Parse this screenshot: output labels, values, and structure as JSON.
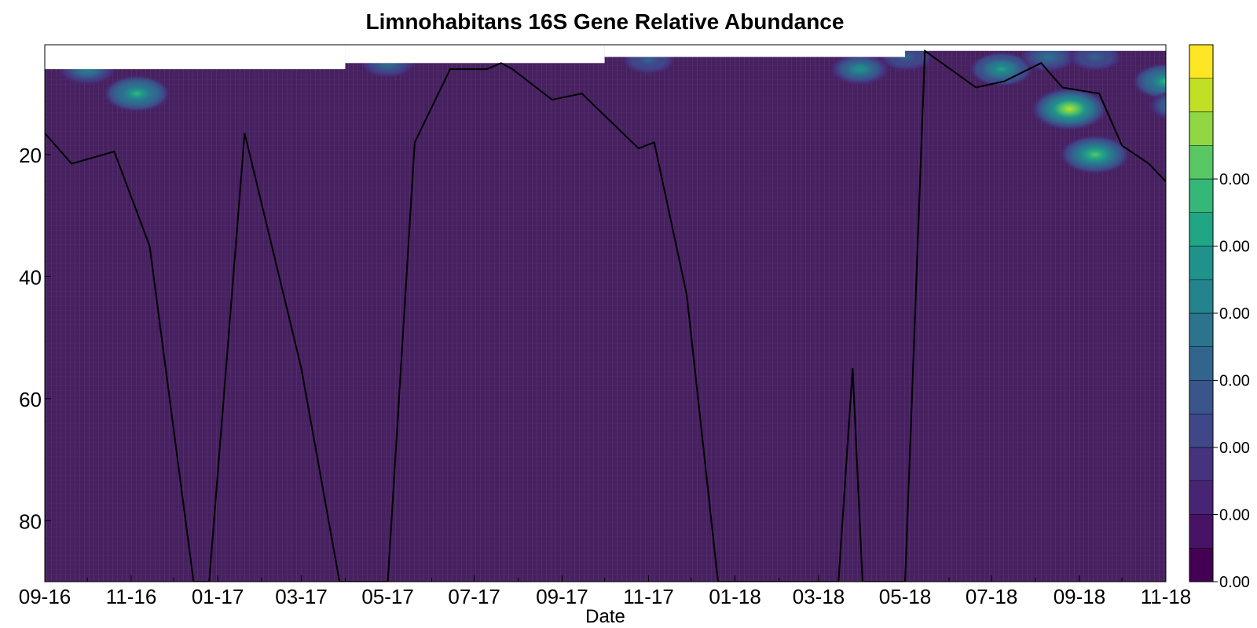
{
  "chart_data": {
    "type": "heatmap",
    "title": "Limnohabitans 16S Gene Relative Abundance",
    "xlabel": "Date",
    "ylabel": "",
    "x_tick_labels": [
      "09-16",
      "11-16",
      "01-17",
      "03-17",
      "05-17",
      "07-17",
      "09-17",
      "11-17",
      "01-18",
      "03-18",
      "05-18",
      "07-18",
      "09-18",
      "11-18"
    ],
    "y_ticks": [
      20,
      40,
      60,
      80
    ],
    "ylim": [
      90,
      2
    ],
    "y_inverted": true,
    "colorbar": {
      "tick_labels": [
        "0.00",
        "0.00",
        "0.00",
        "0.00",
        "0.00",
        "0.00",
        "0.00"
      ],
      "levels": [
        "#440154",
        "#471365",
        "#482475",
        "#46337e",
        "#3f4788",
        "#39558c",
        "#32658e",
        "#2c738e",
        "#25838d",
        "#1f928c",
        "#21a685",
        "#35b779",
        "#59c864",
        "#90d743",
        "#c0df25",
        "#fde725"
      ]
    },
    "heatmap_background": "#46205f",
    "line_series": {
      "name": "",
      "color": "#000000",
      "points": [
        [
          "2016-09-01",
          16.5
        ],
        [
          "2016-09-20",
          21.5
        ],
        [
          "2016-10-20",
          19.5
        ],
        [
          "2016-11-14",
          35
        ],
        [
          "2016-12-15",
          90
        ],
        [
          "2016-12-26",
          90
        ],
        [
          "2017-01-20",
          16.5
        ],
        [
          "2017-03-01",
          55
        ],
        [
          "2017-03-28",
          90
        ],
        [
          "2017-05-01",
          90
        ],
        [
          "2017-05-20",
          18
        ],
        [
          "2017-06-14",
          6
        ],
        [
          "2017-07-10",
          6
        ],
        [
          "2017-07-20",
          5
        ],
        [
          "2017-07-28",
          6
        ],
        [
          "2017-08-25",
          11
        ],
        [
          "2017-09-15",
          10
        ],
        [
          "2017-10-25",
          19
        ],
        [
          "2017-11-05",
          18
        ],
        [
          "2017-11-28",
          43
        ],
        [
          "2017-12-20",
          90
        ],
        [
          "2018-03-15",
          90
        ],
        [
          "2018-03-25",
          55
        ],
        [
          "2018-04-01",
          90
        ],
        [
          "2018-05-01",
          90
        ],
        [
          "2018-05-15",
          3
        ],
        [
          "2018-06-20",
          9
        ],
        [
          "2018-07-10",
          8
        ],
        [
          "2018-08-05",
          5
        ],
        [
          "2018-08-20",
          9
        ],
        [
          "2018-09-15",
          10
        ],
        [
          "2018-10-01",
          18.5
        ],
        [
          "2018-10-20",
          21.5
        ],
        [
          "2018-11-20",
          29
        ]
      ]
    },
    "top_white_region_steps": [
      [
        "2016-09-01",
        6
      ],
      [
        "2017-04-01",
        5
      ],
      [
        "2017-10-01",
        4
      ],
      [
        "2018-05-01",
        3
      ]
    ],
    "hotspots": [
      {
        "date": "2016-10-01",
        "depth": 6,
        "intensity": 0.45
      },
      {
        "date": "2016-11-05",
        "depth": 10,
        "intensity": 0.7
      },
      {
        "date": "2017-05-01",
        "depth": 5,
        "intensity": 0.35
      },
      {
        "date": "2017-11-01",
        "depth": 4.5,
        "intensity": 0.3
      },
      {
        "date": "2018-03-30",
        "depth": 6,
        "intensity": 0.5
      },
      {
        "date": "2018-05-02",
        "depth": 4,
        "intensity": 0.3
      },
      {
        "date": "2018-07-08",
        "depth": 6,
        "intensity": 0.6
      },
      {
        "date": "2018-08-10",
        "depth": 4,
        "intensity": 0.4
      },
      {
        "date": "2018-08-25",
        "depth": 12.5,
        "intensity": 1.0
      },
      {
        "date": "2018-09-12",
        "depth": 20,
        "intensity": 0.8
      },
      {
        "date": "2018-09-12",
        "depth": 4,
        "intensity": 0.3
      },
      {
        "date": "2018-11-01",
        "depth": 8,
        "intensity": 0.7
      },
      {
        "date": "2018-11-10",
        "depth": 12,
        "intensity": 0.5
      }
    ]
  }
}
